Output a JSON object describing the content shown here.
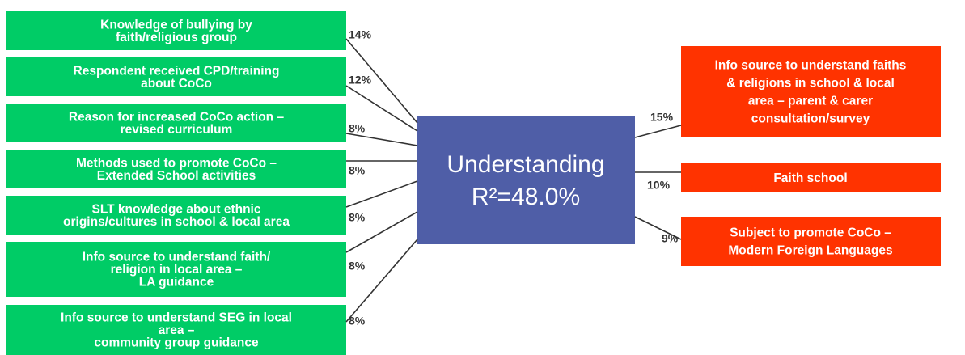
{
  "center": {
    "lines": [
      "Understanding",
      "R²=48.0%"
    ]
  },
  "left_nodes": [
    {
      "lines": [
        "Knowledge of bullying by",
        "faith/religious group"
      ],
      "weight": "14%"
    },
    {
      "lines": [
        "Respondent received CPD/training",
        "about CoCo"
      ],
      "weight": "12%"
    },
    {
      "lines": [
        "Reason for increased CoCo action –",
        "revised curriculum"
      ],
      "weight": "8%"
    },
    {
      "lines": [
        "Methods used to promote CoCo –",
        "Extended School activities"
      ],
      "weight": "8%"
    },
    {
      "lines": [
        "SLT knowledge about ethnic",
        "origins/cultures in school & local area"
      ],
      "weight": "8%"
    },
    {
      "lines": [
        "Info source to understand faith/",
        "religion in local area –",
        "LA guidance"
      ],
      "weight": "8%"
    },
    {
      "lines": [
        "Info source to understand SEG in local",
        "area –",
        "community group guidance"
      ],
      "weight": "8%"
    }
  ],
  "right_nodes": [
    {
      "lines": [
        "Info source to understand faiths",
        "& religions in school & local",
        "area – parent & carer",
        "consultation/survey"
      ],
      "weight": "15%"
    },
    {
      "lines": [
        "Faith school"
      ],
      "weight": "10%"
    },
    {
      "lines": [
        "Subject to promote CoCo –",
        "Modern Foreign Languages"
      ],
      "weight": "9%"
    }
  ]
}
